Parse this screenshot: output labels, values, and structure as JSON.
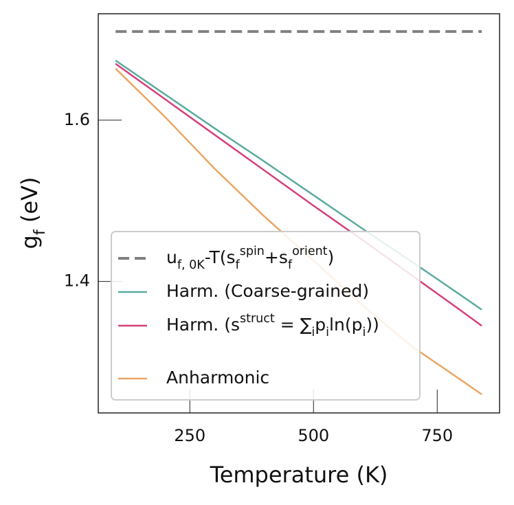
{
  "chart_data": {
    "type": "line",
    "xlabel": "Temperature (K)",
    "ylabel": "g_{f} (eV)",
    "xlim": [
      65,
      876
    ],
    "ylim": [
      1.237,
      1.732
    ],
    "xticks": [
      250,
      500,
      750
    ],
    "yticks": [
      1.6,
      1.4
    ],
    "grid": false,
    "legend": "lower left",
    "series": [
      {
        "name": "u_{f, 0K}-T(s_{f}^{spin}+s_{f}^{orient})",
        "color": "#808080",
        "dashed": true,
        "x": [
          100,
          840
        ],
        "values": [
          1.71,
          1.71
        ]
      },
      {
        "name": "Harm. (Coarse-grained)",
        "color": "#5aab9e",
        "x": [
          100,
          200,
          300,
          400,
          500,
          600,
          700,
          800,
          840
        ],
        "values": [
          1.674,
          1.632,
          1.59,
          1.549,
          1.507,
          1.465,
          1.424,
          1.382,
          1.365
        ]
      },
      {
        "name": "Harm. (s^{struct} = ∑_{i}p_{i}ln(p_{i}))",
        "color": "#d43f7a",
        "x": [
          100,
          200,
          300,
          400,
          500,
          600,
          700,
          800,
          840
        ],
        "values": [
          1.67,
          1.626,
          1.582,
          1.538,
          1.494,
          1.451,
          1.407,
          1.363,
          1.345
        ]
      },
      {
        "name": "Anharmonic",
        "color": "#eba562",
        "x": [
          100,
          200,
          300,
          400,
          500,
          600,
          700,
          800,
          840
        ],
        "values": [
          1.664,
          1.604,
          1.54,
          1.481,
          1.426,
          1.37,
          1.319,
          1.277,
          1.26
        ]
      }
    ]
  }
}
